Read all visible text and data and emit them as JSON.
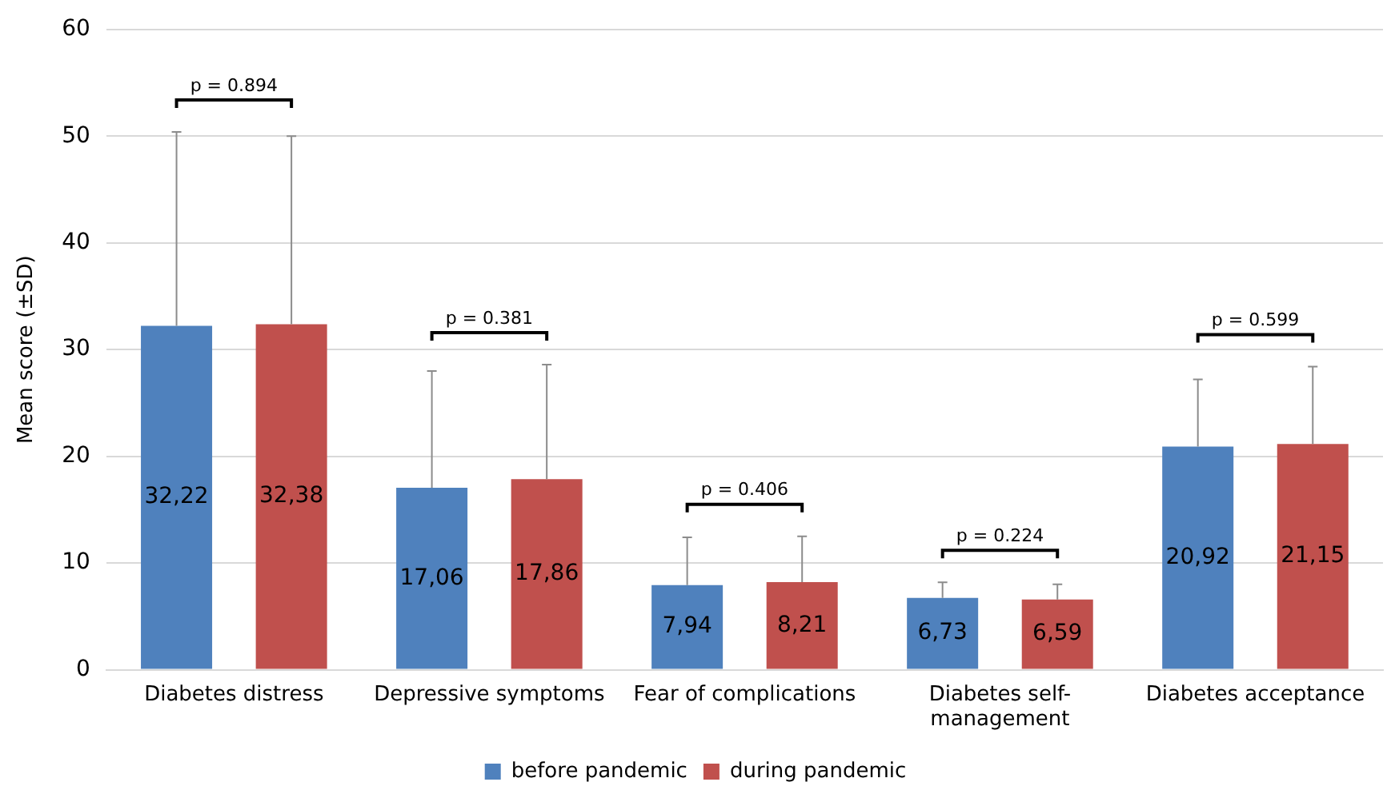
{
  "chart_data": {
    "type": "bar",
    "ylabel": "Mean score (±SD)",
    "categories": [
      "Diabetes distress",
      "Depressive symptoms",
      "Fear of complications",
      "Diabetes self-management",
      "Diabetes acceptance"
    ],
    "series": [
      {
        "name": "before pandemic",
        "color": "#4f81bd",
        "values": [
          32.22,
          17.06,
          7.94,
          6.73,
          20.92
        ],
        "value_labels": [
          "32,22",
          "17,06",
          "7,94",
          "6,73",
          "20,92"
        ],
        "errors": [
          [
            32.22,
            50.4
          ],
          [
            17.06,
            28.0
          ],
          [
            7.94,
            12.4
          ],
          [
            6.73,
            8.2
          ],
          [
            20.92,
            27.2
          ]
        ]
      },
      {
        "name": "during pandemic",
        "color": "#c0504d",
        "values": [
          32.38,
          17.86,
          8.21,
          6.59,
          21.15
        ],
        "value_labels": [
          "32,38",
          "17,86",
          "8,21",
          "6,59",
          "21,15"
        ],
        "errors": [
          [
            32.38,
            50.0
          ],
          [
            17.86,
            28.6
          ],
          [
            8.21,
            12.5
          ],
          [
            6.59,
            8.0
          ],
          [
            21.15,
            28.4
          ]
        ]
      }
    ],
    "annotations": [
      "p = 0.894",
      "p = 0.381",
      "p = 0.406",
      "p = 0.224",
      "p = 0.599"
    ],
    "ylim": [
      0,
      60
    ],
    "yticks": [
      0,
      10,
      20,
      30,
      40,
      50,
      60
    ],
    "grid": "y",
    "legend": "bottom"
  }
}
